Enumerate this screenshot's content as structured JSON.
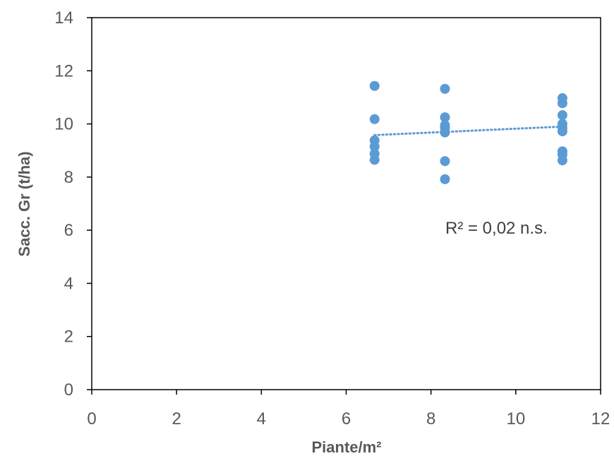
{
  "chart_data": {
    "type": "scatter",
    "xlabel": "Piante/m²",
    "ylabel": "Sacc. Gr (t/ha)",
    "xlim": [
      0,
      12
    ],
    "ylim": [
      0,
      14
    ],
    "xticks": [
      "0",
      "2",
      "4",
      "6",
      "8",
      "10",
      "12"
    ],
    "yticks": [
      "0",
      "2",
      "4",
      "6",
      "8",
      "10",
      "12",
      "14"
    ],
    "grid": false,
    "legend": "none",
    "point_color": "#5B9BD5",
    "series": [
      {
        "points": [
          [
            6.67,
            11.43
          ],
          [
            6.67,
            10.18
          ],
          [
            6.67,
            9.38
          ],
          [
            6.67,
            9.15
          ],
          [
            6.67,
            8.88
          ],
          [
            6.67,
            8.65
          ],
          [
            8.33,
            11.32
          ],
          [
            8.33,
            10.25
          ],
          [
            8.33,
            9.95
          ],
          [
            8.33,
            9.85
          ],
          [
            8.33,
            9.68
          ],
          [
            8.33,
            8.6
          ],
          [
            8.33,
            7.92
          ],
          [
            11.1,
            10.97
          ],
          [
            11.1,
            10.78
          ],
          [
            11.1,
            10.33
          ],
          [
            11.1,
            10.0
          ],
          [
            11.1,
            9.85
          ],
          [
            11.1,
            9.72
          ],
          [
            11.1,
            8.97
          ],
          [
            11.1,
            8.85
          ],
          [
            11.1,
            8.63
          ]
        ]
      }
    ],
    "trendline": {
      "style": "dotted",
      "x": [
        6.67,
        11.1
      ],
      "y": [
        9.58,
        9.9
      ]
    },
    "annotation": "R² = 0,02 n.s."
  }
}
